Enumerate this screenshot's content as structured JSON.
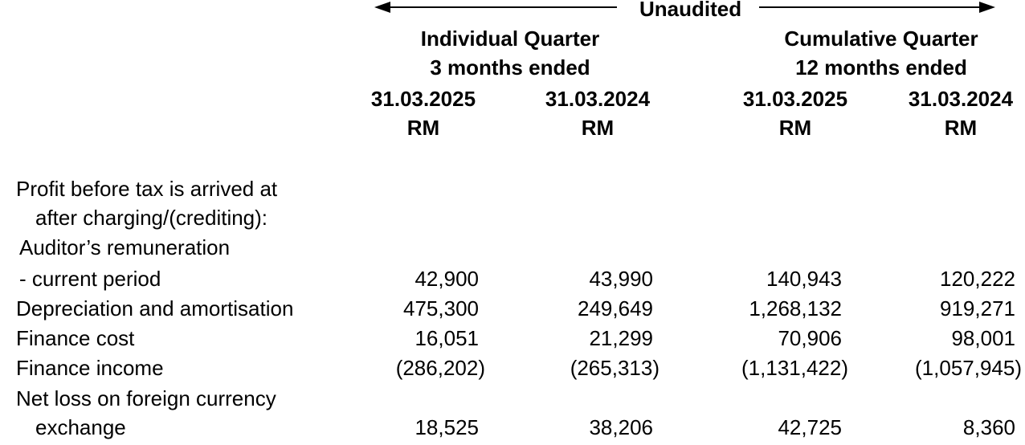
{
  "header": {
    "unaudited": "Unaudited",
    "individual_quarter": "Individual Quarter",
    "individual_period": "3 months ended",
    "cumulative_quarter": "Cumulative Quarter",
    "cumulative_period": "12 months ended",
    "columns": [
      {
        "date": "31.03.2025",
        "unit": "RM"
      },
      {
        "date": "31.03.2024",
        "unit": "RM"
      },
      {
        "date": "31.03.2025",
        "unit": "RM"
      },
      {
        "date": "31.03.2024",
        "unit": "RM"
      }
    ]
  },
  "rows": {
    "intro_line1": "Profit before tax is arrived at",
    "intro_line2": "after charging/(crediting):",
    "auditor_label": "Auditor’s remuneration",
    "current_period": {
      "label": "- current period",
      "values": [
        "42,900",
        "43,990",
        "140,943",
        "120,222"
      ]
    },
    "depreciation": {
      "label": "Depreciation and amortisation",
      "values": [
        "475,300",
        "249,649",
        "1,268,132",
        "919,271"
      ]
    },
    "finance_cost": {
      "label": "Finance cost",
      "values": [
        "16,051",
        "21,299",
        "70,906",
        "98,001"
      ]
    },
    "finance_income": {
      "label": "Finance income",
      "values": [
        "(286,202)",
        "(265,313)",
        "(1,131,422)",
        "(1,057,945)"
      ]
    },
    "net_loss_line1": "Net loss on foreign currency",
    "net_loss": {
      "label": "exchange",
      "values": [
        "18,525",
        "38,206",
        "42,725",
        "8,360"
      ]
    }
  }
}
